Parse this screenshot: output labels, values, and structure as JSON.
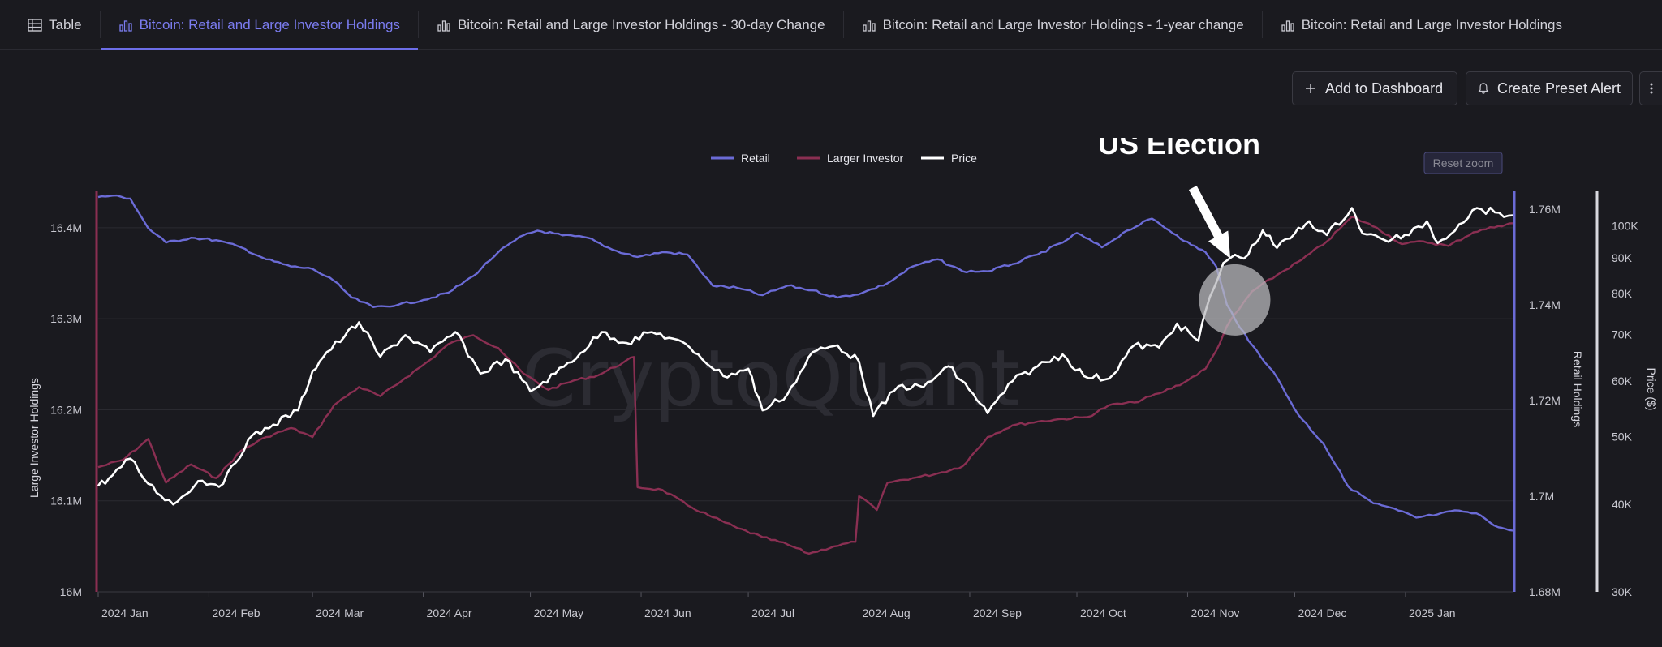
{
  "tabs": [
    {
      "label": "Table",
      "icon": "table-icon",
      "active": false
    },
    {
      "label": "Bitcoin: Retail and Large Investor Holdings",
      "icon": "bar-chart-icon",
      "active": true
    },
    {
      "label": "Bitcoin: Retail and Large Investor Holdings - 30-day Change",
      "icon": "bar-chart-icon",
      "active": false
    },
    {
      "label": "Bitcoin: Retail and Large Investor Holdings - 1-year change",
      "icon": "bar-chart-icon",
      "active": false
    },
    {
      "label": "Bitcoin: Retail and Large Investor Holdings",
      "icon": "bar-chart-icon",
      "active": false
    }
  ],
  "toolbar": {
    "add_dashboard_label": "Add to Dashboard",
    "create_alert_label": "Create Preset Alert"
  },
  "watermark": "CryptoQuant",
  "reset_zoom_label": "Reset zoom",
  "colors": {
    "retail": "#6b6bd6",
    "large": "#8a2f52",
    "price": "#ffffff",
    "accent": "#7b7cf0"
  },
  "chart_data": {
    "type": "line",
    "annotation": {
      "label": "US Election",
      "date": "2024-11-06"
    },
    "x_ticks": [
      "2024 Jan",
      "2024 Feb",
      "2024 Mar",
      "2024 Apr",
      "2024 May",
      "2024 Jun",
      "2024 Jul",
      "2024 Aug",
      "2024 Sep",
      "2024 Oct",
      "2024 Nov",
      "2024 Dec",
      "2025 Jan"
    ],
    "x_range": [
      "2024-01-01",
      "2025-01-31"
    ],
    "axes": {
      "left": {
        "label": "Large Investor Holdings",
        "ticks": [
          "16M",
          "16.1M",
          "16.2M",
          "16.3M",
          "16.4M"
        ],
        "range": [
          16.0,
          16.44
        ],
        "unit": "M"
      },
      "right1": {
        "label": "Retail Holdings",
        "ticks": [
          "1.68M",
          "1.7M",
          "1.72M",
          "1.74M",
          "1.76M"
        ],
        "range": [
          1.68,
          1.7637
        ],
        "unit": "M"
      },
      "right2": {
        "label": "Price ($)",
        "scale": "log",
        "ticks": [
          "30K",
          "40K",
          "50K",
          "60K",
          "70K",
          "80K",
          "90K",
          "100K"
        ],
        "range": [
          30,
          112
        ],
        "unit": "K"
      }
    },
    "grid": true,
    "legend_position": "top-center",
    "series": [
      {
        "name": "Retail",
        "axis": "right1",
        "points": [
          [
            "2024-01-01",
            1.7625
          ],
          [
            "2024-01-05",
            1.7628
          ],
          [
            "2024-01-10",
            1.7622
          ],
          [
            "2024-01-15",
            1.756
          ],
          [
            "2024-01-20",
            1.753
          ],
          [
            "2024-01-27",
            1.754
          ],
          [
            "2024-02-03",
            1.7535
          ],
          [
            "2024-02-10",
            1.752
          ],
          [
            "2024-02-17",
            1.7495
          ],
          [
            "2024-02-24",
            1.748
          ],
          [
            "2024-03-01",
            1.7475
          ],
          [
            "2024-03-07",
            1.745
          ],
          [
            "2024-03-12",
            1.7415
          ],
          [
            "2024-03-18",
            1.7395
          ],
          [
            "2024-03-25",
            1.74
          ],
          [
            "2024-04-01",
            1.741
          ],
          [
            "2024-04-08",
            1.7425
          ],
          [
            "2024-04-15",
            1.746
          ],
          [
            "2024-04-22",
            1.751
          ],
          [
            "2024-04-29",
            1.7545
          ],
          [
            "2024-05-03",
            1.7555
          ],
          [
            "2024-05-10",
            1.7545
          ],
          [
            "2024-05-17",
            1.754
          ],
          [
            "2024-05-24",
            1.7515
          ],
          [
            "2024-05-31",
            1.75
          ],
          [
            "2024-06-07",
            1.751
          ],
          [
            "2024-06-14",
            1.7505
          ],
          [
            "2024-06-21",
            1.744
          ],
          [
            "2024-06-28",
            1.7435
          ],
          [
            "2024-07-05",
            1.742
          ],
          [
            "2024-07-12",
            1.744
          ],
          [
            "2024-07-19",
            1.743
          ],
          [
            "2024-07-26",
            1.7415
          ],
          [
            "2024-08-02",
            1.7425
          ],
          [
            "2024-08-09",
            1.7445
          ],
          [
            "2024-08-16",
            1.748
          ],
          [
            "2024-08-23",
            1.7495
          ],
          [
            "2024-08-30",
            1.747
          ],
          [
            "2024-09-06",
            1.747
          ],
          [
            "2024-09-13",
            1.7485
          ],
          [
            "2024-09-20",
            1.7505
          ],
          [
            "2024-09-27",
            1.753
          ],
          [
            "2024-10-01",
            1.755
          ],
          [
            "2024-10-08",
            1.752
          ],
          [
            "2024-10-15",
            1.7555
          ],
          [
            "2024-10-22",
            1.758
          ],
          [
            "2024-10-29",
            1.7545
          ],
          [
            "2024-11-02",
            1.7525
          ],
          [
            "2024-11-06",
            1.751
          ],
          [
            "2024-11-09",
            1.748
          ],
          [
            "2024-11-12",
            1.74
          ],
          [
            "2024-11-18",
            1.7325
          ],
          [
            "2024-11-25",
            1.726
          ],
          [
            "2024-12-02",
            1.717
          ],
          [
            "2024-12-09",
            1.711
          ],
          [
            "2024-12-16",
            1.702
          ],
          [
            "2024-12-23",
            1.6985
          ],
          [
            "2024-12-30",
            1.697
          ],
          [
            "2025-01-04",
            1.6955
          ],
          [
            "2025-01-10",
            1.6962
          ],
          [
            "2025-01-16",
            1.697
          ],
          [
            "2025-01-22",
            1.696
          ],
          [
            "2025-01-27",
            1.6935
          ],
          [
            "2025-01-31",
            1.6928
          ]
        ]
      },
      {
        "name": "Larger Investor",
        "axis": "left",
        "points": [
          [
            "2024-01-01",
            16.137
          ],
          [
            "2024-01-08",
            16.145
          ],
          [
            "2024-01-15",
            16.168
          ],
          [
            "2024-01-20",
            16.12
          ],
          [
            "2024-01-27",
            16.14
          ],
          [
            "2024-02-03",
            16.125
          ],
          [
            "2024-02-10",
            16.155
          ],
          [
            "2024-02-17",
            16.17
          ],
          [
            "2024-02-24",
            16.18
          ],
          [
            "2024-03-01",
            16.17
          ],
          [
            "2024-03-07",
            16.205
          ],
          [
            "2024-03-14",
            16.225
          ],
          [
            "2024-03-20",
            16.215
          ],
          [
            "2024-03-27",
            16.235
          ],
          [
            "2024-04-03",
            16.255
          ],
          [
            "2024-04-08",
            16.272
          ],
          [
            "2024-04-15",
            16.282
          ],
          [
            "2024-04-22",
            16.268
          ],
          [
            "2024-04-29",
            16.24
          ],
          [
            "2024-05-06",
            16.222
          ],
          [
            "2024-05-13",
            16.232
          ],
          [
            "2024-05-20",
            16.238
          ],
          [
            "2024-05-27",
            16.252
          ],
          [
            "2024-05-30",
            16.258
          ],
          [
            "2024-05-31",
            16.115
          ],
          [
            "2024-06-07",
            16.112
          ],
          [
            "2024-06-14",
            16.095
          ],
          [
            "2024-06-21",
            16.082
          ],
          [
            "2024-06-28",
            16.07
          ],
          [
            "2024-07-05",
            16.06
          ],
          [
            "2024-07-12",
            16.052
          ],
          [
            "2024-07-18",
            16.042
          ],
          [
            "2024-07-25",
            16.05
          ],
          [
            "2024-07-31",
            16.055
          ],
          [
            "2024-08-01",
            16.105
          ],
          [
            "2024-08-06",
            16.09
          ],
          [
            "2024-08-09",
            16.12
          ],
          [
            "2024-08-16",
            16.125
          ],
          [
            "2024-08-23",
            16.13
          ],
          [
            "2024-08-30",
            16.138
          ],
          [
            "2024-09-06",
            16.17
          ],
          [
            "2024-09-13",
            16.183
          ],
          [
            "2024-09-20",
            16.187
          ],
          [
            "2024-09-27",
            16.19
          ],
          [
            "2024-10-04",
            16.192
          ],
          [
            "2024-10-10",
            16.205
          ],
          [
            "2024-10-17",
            16.208
          ],
          [
            "2024-10-24",
            16.218
          ],
          [
            "2024-10-31",
            16.23
          ],
          [
            "2024-11-06",
            16.245
          ],
          [
            "2024-11-09",
            16.265
          ],
          [
            "2024-11-12",
            16.292
          ],
          [
            "2024-11-19",
            16.33
          ],
          [
            "2024-11-26",
            16.348
          ],
          [
            "2024-12-03",
            16.365
          ],
          [
            "2024-12-10",
            16.385
          ],
          [
            "2024-12-17",
            16.412
          ],
          [
            "2024-12-24",
            16.4
          ],
          [
            "2024-12-31",
            16.382
          ],
          [
            "2025-01-06",
            16.385
          ],
          [
            "2025-01-13",
            16.38
          ],
          [
            "2025-01-20",
            16.395
          ],
          [
            "2025-01-27",
            16.402
          ],
          [
            "2025-01-31",
            16.405
          ]
        ]
      },
      {
        "name": "Price",
        "axis": "right2",
        "points": [
          [
            "2024-01-01",
            42.5
          ],
          [
            "2024-01-05",
            44.0
          ],
          [
            "2024-01-10",
            46.5
          ],
          [
            "2024-01-15",
            42.8
          ],
          [
            "2024-01-22",
            40.0
          ],
          [
            "2024-01-29",
            43.2
          ],
          [
            "2024-02-05",
            42.8
          ],
          [
            "2024-02-12",
            49.5
          ],
          [
            "2024-02-19",
            52.0
          ],
          [
            "2024-02-26",
            54.5
          ],
          [
            "2024-03-01",
            62.0
          ],
          [
            "2024-03-05",
            66.0
          ],
          [
            "2024-03-10",
            69.5
          ],
          [
            "2024-03-14",
            72.8
          ],
          [
            "2024-03-20",
            65.0
          ],
          [
            "2024-03-27",
            69.8
          ],
          [
            "2024-04-03",
            66.0
          ],
          [
            "2024-04-10",
            70.5
          ],
          [
            "2024-04-17",
            61.5
          ],
          [
            "2024-04-24",
            64.5
          ],
          [
            "2024-05-01",
            58.0
          ],
          [
            "2024-05-08",
            61.5
          ],
          [
            "2024-05-15",
            65.8
          ],
          [
            "2024-05-21",
            70.5
          ],
          [
            "2024-05-28",
            68.0
          ],
          [
            "2024-06-04",
            70.5
          ],
          [
            "2024-06-10",
            69.0
          ],
          [
            "2024-06-17",
            65.5
          ],
          [
            "2024-06-24",
            61.0
          ],
          [
            "2024-07-01",
            62.5
          ],
          [
            "2024-07-05",
            54.5
          ],
          [
            "2024-07-12",
            57.5
          ],
          [
            "2024-07-19",
            66.0
          ],
          [
            "2024-07-26",
            67.5
          ],
          [
            "2024-08-01",
            64.0
          ],
          [
            "2024-08-05",
            53.5
          ],
          [
            "2024-08-12",
            59.0
          ],
          [
            "2024-08-19",
            58.8
          ],
          [
            "2024-08-26",
            63.0
          ],
          [
            "2024-09-02",
            57.5
          ],
          [
            "2024-09-06",
            54.0
          ],
          [
            "2024-09-13",
            60.0
          ],
          [
            "2024-09-20",
            63.0
          ],
          [
            "2024-09-27",
            65.5
          ],
          [
            "2024-10-03",
            61.0
          ],
          [
            "2024-10-10",
            60.5
          ],
          [
            "2024-10-17",
            67.5
          ],
          [
            "2024-10-24",
            67.0
          ],
          [
            "2024-10-29",
            72.5
          ],
          [
            "2024-11-04",
            68.5
          ],
          [
            "2024-11-06",
            75.5
          ],
          [
            "2024-11-11",
            88.5
          ],
          [
            "2024-11-13",
            90.0
          ],
          [
            "2024-11-18",
            91.0
          ],
          [
            "2024-11-22",
            98.5
          ],
          [
            "2024-11-26",
            93.0
          ],
          [
            "2024-12-01",
            97.5
          ],
          [
            "2024-12-05",
            101.5
          ],
          [
            "2024-12-10",
            97.0
          ],
          [
            "2024-12-17",
            106.0
          ],
          [
            "2024-12-20",
            97.5
          ],
          [
            "2024-12-26",
            95.5
          ],
          [
            "2025-01-02",
            97.0
          ],
          [
            "2025-01-07",
            101.5
          ],
          [
            "2025-01-10",
            94.5
          ],
          [
            "2025-01-16",
            100.5
          ],
          [
            "2025-01-21",
            106.0
          ],
          [
            "2025-01-26",
            104.5
          ],
          [
            "2025-01-31",
            103.5
          ]
        ]
      }
    ]
  }
}
